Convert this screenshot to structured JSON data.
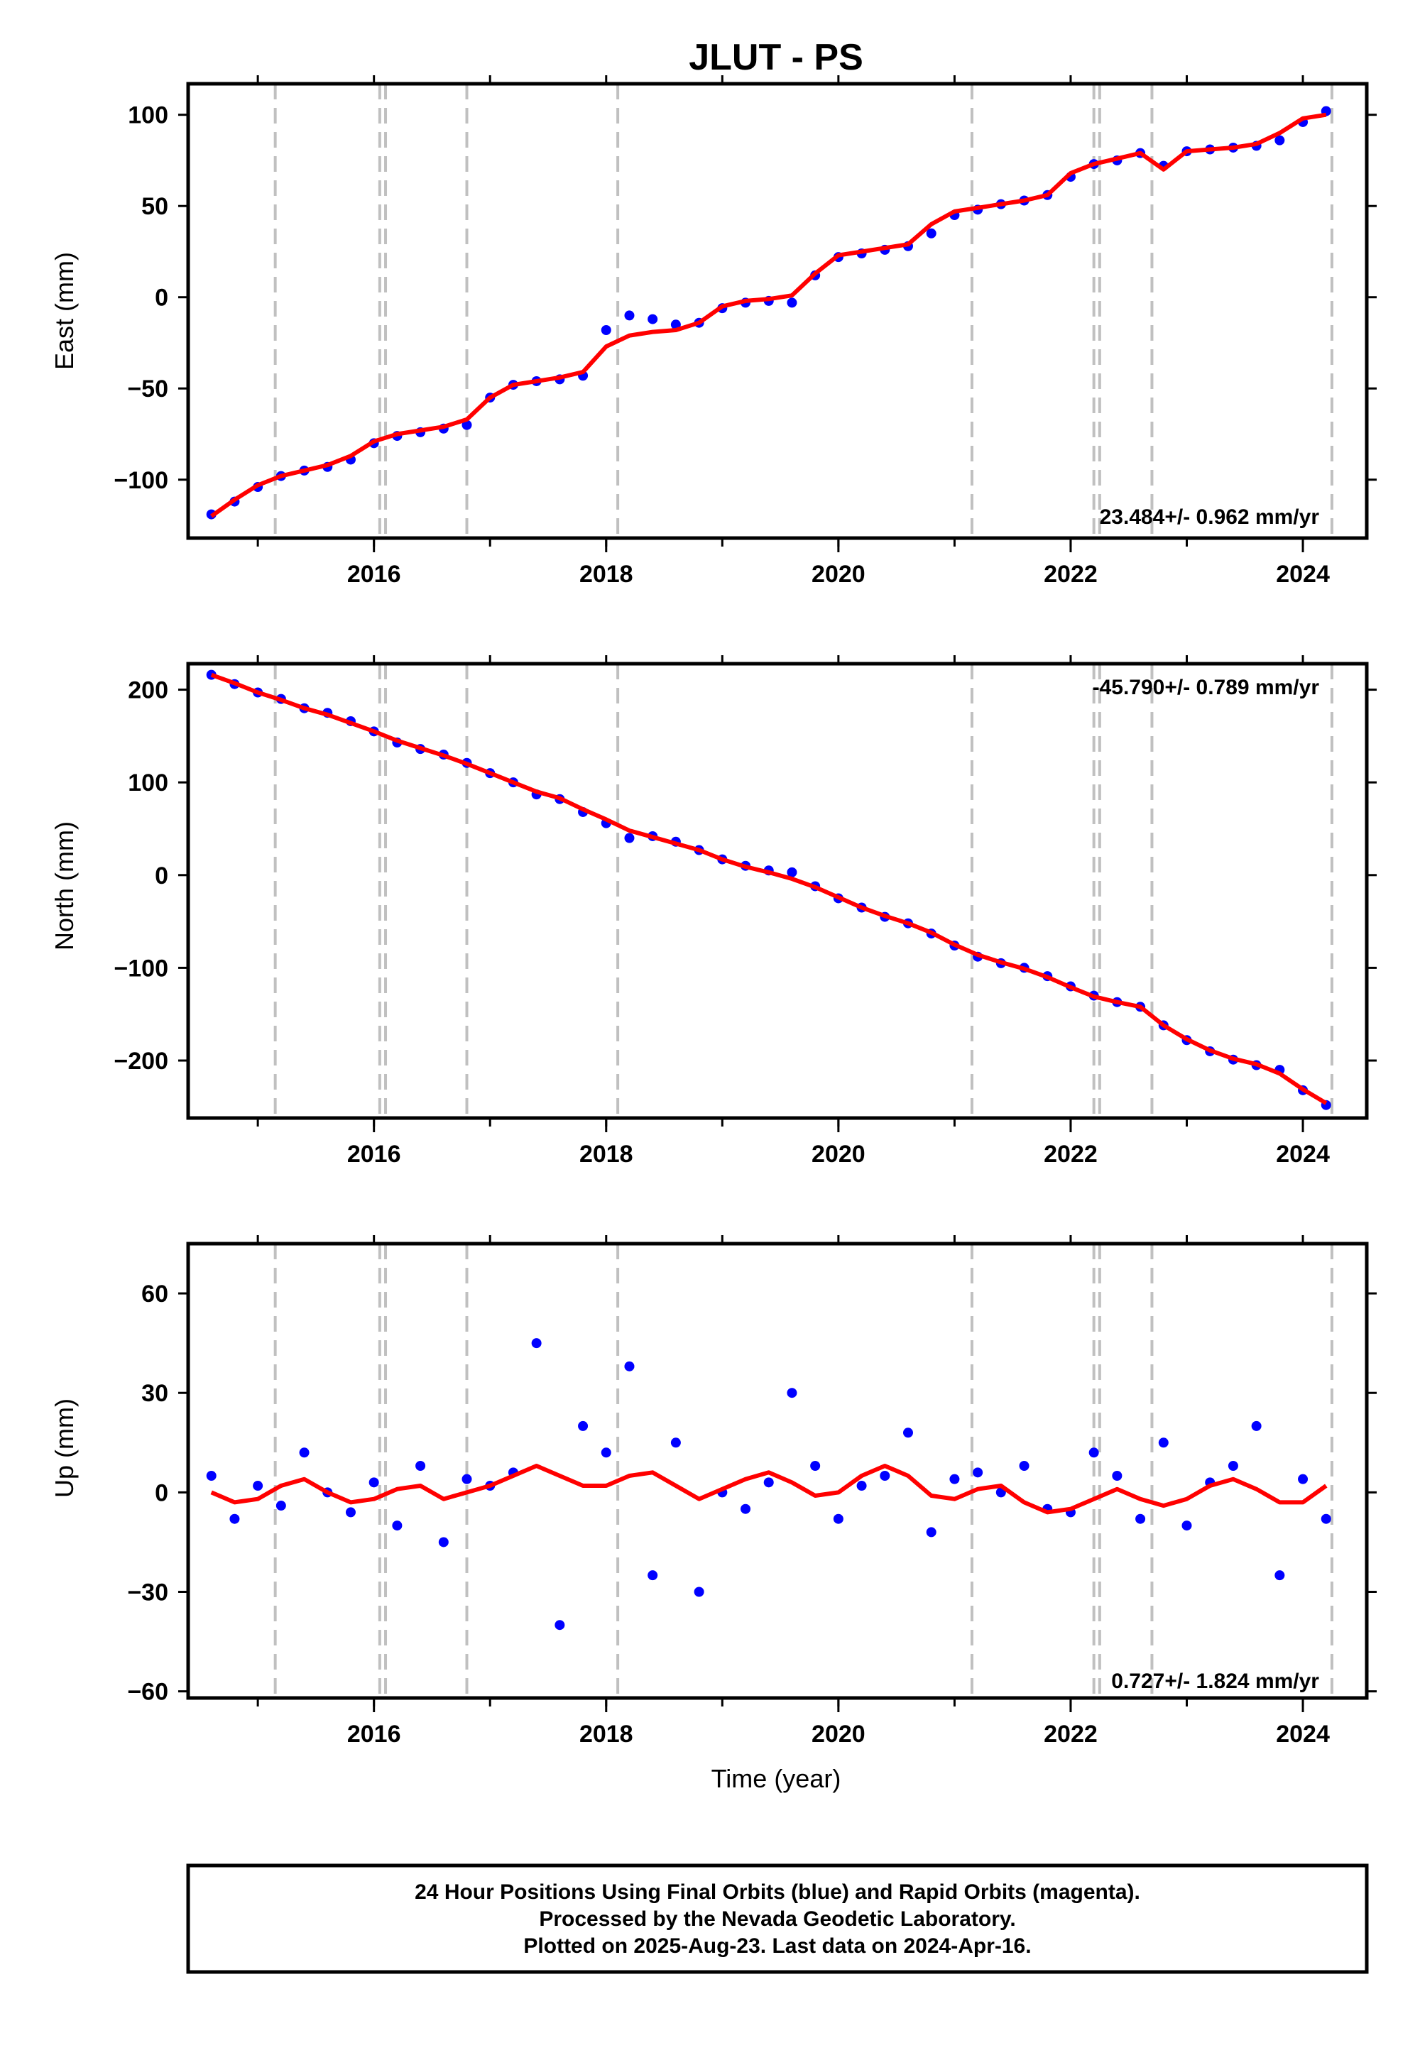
{
  "title": "JLUT - PS",
  "xlabel": "Time (year)",
  "footer": {
    "line1": "24 Hour Positions Using Final Orbits (blue) and Rapid Orbits (magenta).",
    "line2": "Processed by the Nevada Geodetic Laboratory.",
    "line3": "Plotted on 2025-Aug-23. Last data on 2024-Apr-16."
  },
  "colors": {
    "points": "#0000ff",
    "model": "#ff0000",
    "events": "#c0c0c0",
    "axes": "#000000"
  },
  "chart_data": [
    {
      "type": "scatter",
      "component": "East",
      "ylabel": "East (mm)",
      "rate_label": "23.484+/- 0.962 mm/yr",
      "rate_corner": "bottom-right",
      "xlim": [
        2014.4,
        2024.55
      ],
      "ylim": [
        -132,
        117
      ],
      "xticks": [
        2016,
        2018,
        2020,
        2022,
        2024
      ],
      "yticks": [
        -100,
        -50,
        0,
        50,
        100
      ],
      "grid": false,
      "event_lines": [
        2015.15,
        2016.05,
        2016.1,
        2016.8,
        2018.1,
        2021.15,
        2022.2,
        2022.25,
        2022.7,
        2024.25
      ],
      "series": [
        {
          "label_style": "daily positions (blue points)",
          "x": [
            2014.6,
            2014.8,
            2015.0,
            2015.2,
            2015.4,
            2015.6,
            2015.8,
            2016.0,
            2016.2,
            2016.4,
            2016.6,
            2016.8,
            2017.0,
            2017.2,
            2017.4,
            2017.6,
            2017.8,
            2018.0,
            2018.2,
            2018.4,
            2018.6,
            2018.8,
            2019.0,
            2019.2,
            2019.4,
            2019.6,
            2019.8,
            2020.0,
            2020.2,
            2020.4,
            2020.6,
            2020.8,
            2021.0,
            2021.2,
            2021.4,
            2021.6,
            2021.8,
            2022.0,
            2022.2,
            2022.4,
            2022.6,
            2022.8,
            2023.0,
            2023.2,
            2023.4,
            2023.6,
            2023.8,
            2024.0,
            2024.2
          ],
          "y": [
            -119,
            -112,
            -104,
            -98,
            -95,
            -93,
            -89,
            -80,
            -76,
            -74,
            -72,
            -70,
            -55,
            -48,
            -46,
            -45,
            -43,
            -18,
            -10,
            -12,
            -15,
            -14,
            -6,
            -3,
            -2,
            -3,
            12,
            22,
            24,
            26,
            28,
            35,
            45,
            48,
            51,
            53,
            56,
            66,
            73,
            75,
            79,
            72,
            80,
            81,
            82,
            83,
            86,
            96,
            102
          ]
        },
        {
          "label_style": "model (red line)",
          "x": [
            2014.6,
            2014.8,
            2015.0,
            2015.2,
            2015.4,
            2015.6,
            2015.8,
            2016.0,
            2016.2,
            2016.4,
            2016.6,
            2016.8,
            2017.0,
            2017.2,
            2017.4,
            2017.6,
            2017.8,
            2018.0,
            2018.2,
            2018.4,
            2018.6,
            2018.8,
            2019.0,
            2019.2,
            2019.4,
            2019.6,
            2019.8,
            2020.0,
            2020.2,
            2020.4,
            2020.6,
            2020.8,
            2021.0,
            2021.2,
            2021.4,
            2021.6,
            2021.8,
            2022.0,
            2022.2,
            2022.4,
            2022.6,
            2022.8,
            2023.0,
            2023.2,
            2023.4,
            2023.6,
            2023.8,
            2024.0,
            2024.2
          ],
          "y": [
            -120,
            -111,
            -103,
            -98,
            -95,
            -92,
            -87,
            -79,
            -75,
            -73,
            -71,
            -67,
            -55,
            -48,
            -46,
            -44,
            -41,
            -27,
            -21,
            -19,
            -18,
            -14,
            -5,
            -2,
            -1,
            1,
            13,
            23,
            25,
            27,
            29,
            40,
            47,
            49,
            51,
            53,
            56,
            68,
            73,
            76,
            79,
            70,
            80,
            81,
            82,
            84,
            90,
            98,
            100
          ]
        }
      ]
    },
    {
      "type": "scatter",
      "component": "North",
      "ylabel": "North (mm)",
      "rate_label": "-45.790+/- 0.789 mm/yr",
      "rate_corner": "top-right",
      "xlim": [
        2014.4,
        2024.55
      ],
      "ylim": [
        -262,
        228
      ],
      "xticks": [
        2016,
        2018,
        2020,
        2022,
        2024
      ],
      "yticks": [
        -200,
        -100,
        0,
        100,
        200
      ],
      "grid": false,
      "event_lines": [
        2015.15,
        2016.05,
        2016.1,
        2016.8,
        2018.1,
        2021.15,
        2022.2,
        2022.25,
        2022.7,
        2024.25
      ],
      "series": [
        {
          "label_style": "daily positions (blue points)",
          "x": [
            2014.6,
            2014.8,
            2015.0,
            2015.2,
            2015.4,
            2015.6,
            2015.8,
            2016.0,
            2016.2,
            2016.4,
            2016.6,
            2016.8,
            2017.0,
            2017.2,
            2017.4,
            2017.6,
            2017.8,
            2018.0,
            2018.2,
            2018.4,
            2018.6,
            2018.8,
            2019.0,
            2019.2,
            2019.4,
            2019.6,
            2019.8,
            2020.0,
            2020.2,
            2020.4,
            2020.6,
            2020.8,
            2021.0,
            2021.2,
            2021.4,
            2021.6,
            2021.8,
            2022.0,
            2022.2,
            2022.4,
            2022.6,
            2022.8,
            2023.0,
            2023.2,
            2023.4,
            2023.6,
            2023.8,
            2024.0,
            2024.2
          ],
          "y": [
            216,
            206,
            197,
            190,
            180,
            175,
            166,
            155,
            143,
            136,
            130,
            121,
            110,
            100,
            87,
            82,
            68,
            56,
            40,
            42,
            36,
            27,
            17,
            10,
            5,
            3,
            -12,
            -25,
            -35,
            -45,
            -52,
            -63,
            -76,
            -88,
            -95,
            -100,
            -109,
            -120,
            -130,
            -137,
            -142,
            -162,
            -178,
            -190,
            -199,
            -205,
            -210,
            -232,
            -248
          ]
        },
        {
          "label_style": "model (red line)",
          "x": [
            2014.6,
            2014.8,
            2015.0,
            2015.2,
            2015.4,
            2015.6,
            2015.8,
            2016.0,
            2016.2,
            2016.4,
            2016.6,
            2016.8,
            2017.0,
            2017.2,
            2017.4,
            2017.6,
            2017.8,
            2018.0,
            2018.2,
            2018.4,
            2018.6,
            2018.8,
            2019.0,
            2019.2,
            2019.4,
            2019.6,
            2019.8,
            2020.0,
            2020.2,
            2020.4,
            2020.6,
            2020.8,
            2021.0,
            2021.2,
            2021.4,
            2021.6,
            2021.8,
            2022.0,
            2022.2,
            2022.4,
            2022.6,
            2022.8,
            2023.0,
            2023.2,
            2023.4,
            2023.6,
            2023.8,
            2024.0,
            2024.2
          ],
          "y": [
            216,
            207,
            197,
            189,
            180,
            173,
            164,
            155,
            145,
            137,
            129,
            120,
            110,
            100,
            90,
            83,
            71,
            60,
            48,
            41,
            34,
            27,
            17,
            9,
            3,
            -4,
            -13,
            -24,
            -35,
            -44,
            -52,
            -62,
            -75,
            -86,
            -94,
            -101,
            -110,
            -121,
            -131,
            -137,
            -142,
            -162,
            -177,
            -189,
            -198,
            -204,
            -214,
            -231,
            -246
          ]
        }
      ]
    },
    {
      "type": "scatter",
      "component": "Up",
      "ylabel": "Up (mm)",
      "rate_label": "0.727+/- 1.824 mm/yr",
      "rate_corner": "bottom-right",
      "xlim": [
        2014.4,
        2024.55
      ],
      "ylim": [
        -62,
        75
      ],
      "xticks": [
        2016,
        2018,
        2020,
        2022,
        2024
      ],
      "yticks": [
        -60,
        -30,
        0,
        30,
        60
      ],
      "grid": false,
      "event_lines": [
        2015.15,
        2016.05,
        2016.1,
        2016.8,
        2018.1,
        2021.15,
        2022.2,
        2022.25,
        2022.7,
        2024.25
      ],
      "series": [
        {
          "label_style": "daily positions (blue points)",
          "x": [
            2014.6,
            2014.8,
            2015.0,
            2015.2,
            2015.4,
            2015.6,
            2015.8,
            2016.0,
            2016.2,
            2016.4,
            2016.6,
            2016.8,
            2017.0,
            2017.2,
            2017.4,
            2017.6,
            2017.8,
            2018.0,
            2018.2,
            2018.4,
            2018.6,
            2018.8,
            2019.0,
            2019.2,
            2019.4,
            2019.6,
            2019.8,
            2020.0,
            2020.2,
            2020.4,
            2020.6,
            2020.8,
            2021.0,
            2021.2,
            2021.4,
            2021.6,
            2021.8,
            2022.0,
            2022.2,
            2022.4,
            2022.6,
            2022.8,
            2023.0,
            2023.2,
            2023.4,
            2023.6,
            2023.8,
            2024.0,
            2024.2
          ],
          "y": [
            5,
            -8,
            2,
            -4,
            12,
            0,
            -6,
            3,
            -10,
            8,
            -15,
            4,
            2,
            6,
            45,
            -40,
            20,
            12,
            38,
            -25,
            15,
            -30,
            0,
            -5,
            3,
            30,
            8,
            -8,
            2,
            5,
            18,
            -12,
            4,
            6,
            0,
            8,
            -5,
            -6,
            12,
            5,
            -8,
            15,
            -10,
            3,
            8,
            20,
            -25,
            4,
            -8
          ]
        },
        {
          "label_style": "model (red line)",
          "x": [
            2014.6,
            2014.8,
            2015.0,
            2015.2,
            2015.4,
            2015.6,
            2015.8,
            2016.0,
            2016.2,
            2016.4,
            2016.6,
            2016.8,
            2017.0,
            2017.2,
            2017.4,
            2017.6,
            2017.8,
            2018.0,
            2018.2,
            2018.4,
            2018.6,
            2018.8,
            2019.0,
            2019.2,
            2019.4,
            2019.6,
            2019.8,
            2020.0,
            2020.2,
            2020.4,
            2020.6,
            2020.8,
            2021.0,
            2021.2,
            2021.4,
            2021.6,
            2021.8,
            2022.0,
            2022.2,
            2022.4,
            2022.6,
            2022.8,
            2023.0,
            2023.2,
            2023.4,
            2023.6,
            2023.8,
            2024.0,
            2024.2
          ],
          "y": [
            0,
            -3,
            -2,
            2,
            4,
            0,
            -3,
            -2,
            1,
            2,
            -2,
            0,
            2,
            5,
            8,
            5,
            2,
            2,
            5,
            6,
            2,
            -2,
            1,
            4,
            6,
            3,
            -1,
            0,
            5,
            8,
            5,
            -1,
            -2,
            1,
            2,
            -3,
            -6,
            -5,
            -2,
            1,
            -2,
            -4,
            -2,
            2,
            4,
            1,
            -3,
            -3,
            2
          ]
        }
      ]
    }
  ]
}
